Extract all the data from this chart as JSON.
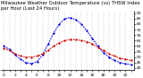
{
  "title": "Milwaukee Weather Outdoor Temperature (vs) THSW Index per Hour (Last 24 Hours)",
  "background_color": "#ffffff",
  "grid_color": "#888888",
  "temp_color": "#cc0000",
  "thsw_color": "#0000ee",
  "hours": [
    0,
    1,
    2,
    3,
    4,
    5,
    6,
    7,
    8,
    9,
    10,
    11,
    12,
    13,
    14,
    15,
    16,
    17,
    18,
    19,
    20,
    21,
    22,
    23
  ],
  "temp_values": [
    58,
    56,
    53,
    51,
    50,
    50,
    51,
    53,
    56,
    60,
    63,
    65,
    66,
    66,
    65,
    64,
    62,
    59,
    56,
    53,
    51,
    49,
    48,
    47
  ],
  "thsw_values": [
    60,
    57,
    52,
    48,
    45,
    44,
    46,
    52,
    62,
    72,
    80,
    85,
    86,
    84,
    80,
    74,
    67,
    60,
    54,
    50,
    47,
    45,
    44,
    43
  ],
  "ylim_min": 38,
  "ylim_max": 92,
  "ytick_values": [
    40,
    45,
    50,
    55,
    60,
    65,
    70,
    75,
    80,
    85,
    90
  ],
  "title_fontsize": 3.8,
  "tick_fontsize": 3.2,
  "linewidth": 0.7,
  "marker_size": 1.2
}
